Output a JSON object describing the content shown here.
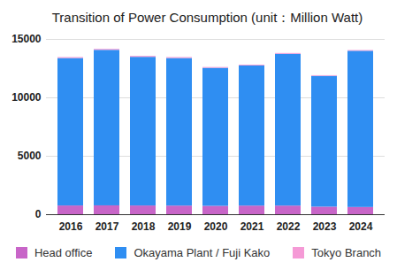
{
  "chart_data": {
    "type": "bar",
    "stacked": true,
    "title": "Transition of Power Consumption (unit：Million Watt)",
    "categories": [
      "2016",
      "2017",
      "2018",
      "2019",
      "2020",
      "2021",
      "2022",
      "2023",
      "2024"
    ],
    "series": [
      {
        "name": "Head office",
        "color": "#c865c8",
        "values": [
          750,
          760,
          750,
          740,
          720,
          740,
          740,
          650,
          620
        ]
      },
      {
        "name": "Okayama Plant / Fuji Kako",
        "color": "#2f8ef2",
        "values": [
          12620,
          13310,
          12720,
          12630,
          11810,
          11990,
          12990,
          11190,
          13370
        ]
      },
      {
        "name": "Tokyo Branch",
        "color": "#f59ad6",
        "values": [
          80,
          80,
          80,
          80,
          70,
          70,
          70,
          60,
          60
        ]
      }
    ],
    "ylim": [
      0,
      15000
    ],
    "yticks": [
      0,
      5000,
      10000,
      15000
    ],
    "grid": true,
    "legend": "bottom"
  }
}
